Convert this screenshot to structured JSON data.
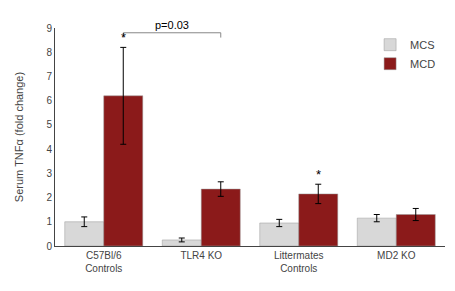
{
  "chart_data": {
    "type": "bar",
    "categories": [
      "C57Bl/6\nControls",
      "TLR4 KO",
      "Littermates\nControls",
      "MD2 KO"
    ],
    "series": [
      {
        "name": "MCS",
        "color": "#d8d8d8",
        "values": [
          1.0,
          0.25,
          0.95,
          1.15
        ],
        "errors": [
          0.2,
          0.08,
          0.15,
          0.15
        ]
      },
      {
        "name": "MCD",
        "color": "#8b1a1a",
        "values": [
          6.2,
          2.35,
          2.15,
          1.3
        ],
        "errors": [
          2.0,
          0.3,
          0.4,
          0.25
        ]
      }
    ],
    "ylabel": "Serum TNFα (fold change)",
    "ylim": [
      0,
      9
    ],
    "yticks": [
      0,
      1,
      2,
      3,
      4,
      5,
      6,
      7,
      8,
      9
    ],
    "grid": false,
    "legend": "upper right",
    "annotations": [
      {
        "text": "*",
        "category": "C57Bl/6\nControls",
        "series": "MCD"
      },
      {
        "text": "*",
        "category": "Littermates\nControls",
        "series": "MCD"
      },
      {
        "text": "p=0.03",
        "from": "C57Bl/6\nControls",
        "to": "TLR4 KO",
        "series": "MCD"
      }
    ]
  }
}
